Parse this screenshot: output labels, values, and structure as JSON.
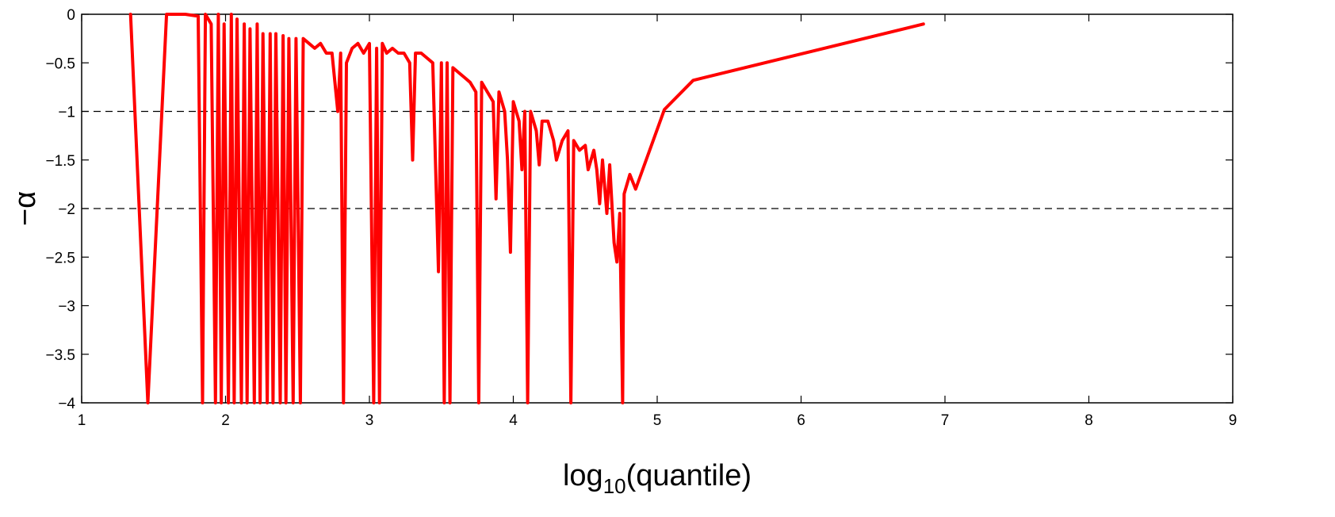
{
  "chart_data": {
    "type": "line",
    "title": "",
    "xlabel": "log10(quantile)",
    "xlabel_parts": {
      "base": "log",
      "sub": "10",
      "rest": "(quantile)"
    },
    "ylabel": "−α",
    "xlim": [
      1,
      9
    ],
    "ylim": [
      -4,
      0
    ],
    "xticks": [
      "1",
      "2",
      "3",
      "4",
      "5",
      "6",
      "7",
      "8",
      "9"
    ],
    "yticks": [
      "0",
      "−0.5",
      "−1",
      "−1.5",
      "−2",
      "−2.5",
      "−3",
      "−3.5",
      "−4"
    ],
    "grid": false,
    "reference_lines": [
      {
        "y": -1,
        "style": "dashed",
        "color": "#000000"
      },
      {
        "y": -2,
        "style": "dashed",
        "color": "#000000"
      }
    ],
    "series": [
      {
        "color": "#ff0000",
        "points": [
          [
            1.34,
            0.0
          ],
          [
            1.46,
            -4.0
          ],
          [
            1.59,
            0.0
          ],
          [
            1.72,
            0.0
          ],
          [
            1.81,
            -0.02
          ],
          [
            1.84,
            -4.0
          ],
          [
            1.86,
            0.0
          ],
          [
            1.9,
            -0.1
          ],
          [
            1.93,
            -4.0
          ],
          [
            1.95,
            0.0
          ],
          [
            1.97,
            -4.0
          ],
          [
            1.99,
            -0.1
          ],
          [
            2.02,
            -4.0
          ],
          [
            2.04,
            0.0
          ],
          [
            2.06,
            -4.0
          ],
          [
            2.08,
            -0.05
          ],
          [
            2.11,
            -4.0
          ],
          [
            2.13,
            -0.1
          ],
          [
            2.15,
            -4.0
          ],
          [
            2.17,
            -0.15
          ],
          [
            2.2,
            -4.0
          ],
          [
            2.22,
            -0.1
          ],
          [
            2.24,
            -4.0
          ],
          [
            2.26,
            -0.2
          ],
          [
            2.29,
            -4.0
          ],
          [
            2.31,
            -0.2
          ],
          [
            2.33,
            -4.0
          ],
          [
            2.35,
            -0.2
          ],
          [
            2.38,
            -4.0
          ],
          [
            2.4,
            -0.22
          ],
          [
            2.42,
            -4.0
          ],
          [
            2.44,
            -0.25
          ],
          [
            2.47,
            -4.0
          ],
          [
            2.49,
            -0.25
          ],
          [
            2.52,
            -4.0
          ],
          [
            2.54,
            -0.25
          ],
          [
            2.58,
            -0.3
          ],
          [
            2.62,
            -0.35
          ],
          [
            2.66,
            -0.3
          ],
          [
            2.7,
            -0.4
          ],
          [
            2.74,
            -0.4
          ],
          [
            2.78,
            -1.0
          ],
          [
            2.8,
            -0.4
          ],
          [
            2.82,
            -4.0
          ],
          [
            2.84,
            -0.5
          ],
          [
            2.88,
            -0.35
          ],
          [
            2.92,
            -0.3
          ],
          [
            2.96,
            -0.4
          ],
          [
            3.0,
            -0.3
          ],
          [
            3.03,
            -4.0
          ],
          [
            3.05,
            -0.35
          ],
          [
            3.07,
            -4.0
          ],
          [
            3.09,
            -0.3
          ],
          [
            3.12,
            -0.4
          ],
          [
            3.16,
            -0.35
          ],
          [
            3.2,
            -0.4
          ],
          [
            3.24,
            -0.4
          ],
          [
            3.28,
            -0.5
          ],
          [
            3.3,
            -1.5
          ],
          [
            3.32,
            -0.4
          ],
          [
            3.36,
            -0.4
          ],
          [
            3.4,
            -0.45
          ],
          [
            3.44,
            -0.5
          ],
          [
            3.48,
            -2.65
          ],
          [
            3.5,
            -0.5
          ],
          [
            3.52,
            -4.0
          ],
          [
            3.54,
            -0.5
          ],
          [
            3.56,
            -4.0
          ],
          [
            3.58,
            -0.55
          ],
          [
            3.62,
            -0.6
          ],
          [
            3.66,
            -0.65
          ],
          [
            3.7,
            -0.7
          ],
          [
            3.74,
            -0.8
          ],
          [
            3.76,
            -4.0
          ],
          [
            3.78,
            -0.7
          ],
          [
            3.82,
            -0.8
          ],
          [
            3.86,
            -0.9
          ],
          [
            3.88,
            -1.9
          ],
          [
            3.9,
            -0.8
          ],
          [
            3.94,
            -1.0
          ],
          [
            3.96,
            -1.5
          ],
          [
            3.98,
            -2.45
          ],
          [
            4.0,
            -0.9
          ],
          [
            4.04,
            -1.1
          ],
          [
            4.06,
            -1.6
          ],
          [
            4.08,
            -1.0
          ],
          [
            4.1,
            -4.0
          ],
          [
            4.12,
            -1.0
          ],
          [
            4.16,
            -1.2
          ],
          [
            4.18,
            -1.55
          ],
          [
            4.2,
            -1.1
          ],
          [
            4.24,
            -1.1
          ],
          [
            4.28,
            -1.3
          ],
          [
            4.3,
            -1.5
          ],
          [
            4.34,
            -1.3
          ],
          [
            4.38,
            -1.2
          ],
          [
            4.4,
            -4.0
          ],
          [
            4.42,
            -1.3
          ],
          [
            4.46,
            -1.4
          ],
          [
            4.5,
            -1.35
          ],
          [
            4.52,
            -1.6
          ],
          [
            4.56,
            -1.4
          ],
          [
            4.58,
            -1.6
          ],
          [
            4.6,
            -1.95
          ],
          [
            4.62,
            -1.5
          ],
          [
            4.65,
            -2.05
          ],
          [
            4.67,
            -1.55
          ],
          [
            4.7,
            -2.35
          ],
          [
            4.72,
            -2.55
          ],
          [
            4.74,
            -2.05
          ],
          [
            4.76,
            -4.0
          ],
          [
            4.77,
            -1.85
          ],
          [
            4.81,
            -1.65
          ],
          [
            4.85,
            -1.8
          ],
          [
            5.05,
            -0.98
          ],
          [
            5.25,
            -0.68
          ],
          [
            6.85,
            -0.1
          ]
        ]
      }
    ]
  }
}
